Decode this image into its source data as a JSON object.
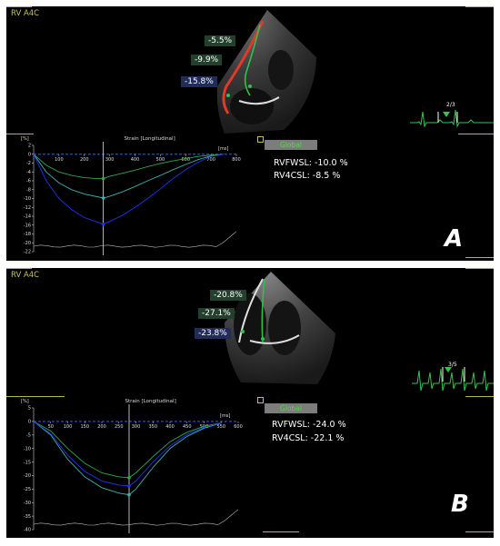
{
  "colors": {
    "accent_yellow": "#c9c84a",
    "global_green": "#48e03c",
    "strain_blue": "#2233ee",
    "strain_green": "#2fa84a",
    "strain_cyan": "#3fb0b0"
  },
  "panels": [
    {
      "view_label": "RV A4C",
      "segment_labels": [
        "-5.5%",
        "-9.9%",
        "-15.8%"
      ],
      "global_button": "Global",
      "metrics": [
        "RVFWSL: -10.0 %",
        "RV4CSL: -8.5 %"
      ],
      "panel_letter": "A",
      "ecg_fraction": "2/3"
    },
    {
      "view_label": "RV A4C",
      "segment_labels": [
        "-20.8%",
        "-27.1%",
        "-23.8%"
      ],
      "global_button": "Global",
      "metrics": [
        "RVFWSL: -24.0 %",
        "RV4CSL: -22.1 %"
      ],
      "panel_letter": "B",
      "ecg_fraction": "3/5"
    }
  ],
  "chart_data": [
    {
      "type": "line",
      "title": "Strain [Longitudinal]",
      "ylabel": "[%]",
      "xlabel": "[ms]",
      "x_ticks": [
        100,
        200,
        300,
        400,
        500,
        600,
        700,
        800
      ],
      "y_ticks": [
        2,
        0,
        -2,
        -4,
        -6,
        -8,
        -10,
        -12,
        -14,
        -16,
        -18,
        -20,
        -22
      ],
      "xlim": [
        0,
        800
      ],
      "ylim": [
        -22,
        2
      ],
      "marker_x": 275,
      "x": [
        0,
        50,
        100,
        150,
        200,
        250,
        275,
        300,
        350,
        400,
        450,
        500,
        550,
        600,
        650,
        700,
        750
      ],
      "series": [
        {
          "color": "green",
          "values": [
            0,
            -2.5,
            -4.0,
            -4.8,
            -5.3,
            -5.5,
            -5.5,
            -5.0,
            -4.3,
            -3.6,
            -2.8,
            -2.1,
            -1.5,
            -1.0,
            -0.5,
            -0.2,
            0
          ]
        },
        {
          "color": "cyan",
          "values": [
            0,
            -4.0,
            -6.5,
            -8.0,
            -9.0,
            -9.6,
            -9.9,
            -9.5,
            -8.5,
            -7.3,
            -6.0,
            -4.8,
            -3.5,
            -2.3,
            -1.2,
            -0.4,
            0
          ]
        },
        {
          "color": "blue",
          "values": [
            0,
            -6.0,
            -10.0,
            -12.5,
            -14.3,
            -15.3,
            -15.8,
            -15.2,
            -13.8,
            -12.0,
            -10.0,
            -7.8,
            -5.5,
            -3.5,
            -1.8,
            -0.5,
            0
          ]
        }
      ]
    },
    {
      "type": "line",
      "title": "Strain [Longitudinal]",
      "ylabel": "[%]",
      "xlabel": "[ms]",
      "x_ticks": [
        50,
        100,
        150,
        200,
        250,
        300,
        350,
        400,
        450,
        500,
        550,
        600
      ],
      "y_ticks": [
        5,
        0,
        -5,
        -10,
        -15,
        -20,
        -25,
        -30,
        -35,
        -40
      ],
      "xlim": [
        0,
        600
      ],
      "ylim": [
        -40,
        5
      ],
      "marker_x": 280,
      "x": [
        0,
        50,
        100,
        150,
        200,
        250,
        280,
        300,
        350,
        400,
        450,
        500,
        550
      ],
      "series": [
        {
          "color": "green",
          "values": [
            0,
            -3.5,
            -10.0,
            -15.5,
            -19.0,
            -20.5,
            -20.8,
            -19.0,
            -13.0,
            -7.5,
            -4.0,
            -1.8,
            -0.5
          ]
        },
        {
          "color": "cyan",
          "values": [
            0,
            -5.0,
            -14.0,
            -20.5,
            -24.5,
            -26.5,
            -27.1,
            -25.0,
            -17.0,
            -10.0,
            -5.5,
            -2.5,
            -0.6
          ]
        },
        {
          "color": "blue",
          "values": [
            0,
            -4.5,
            -12.5,
            -18.5,
            -22.0,
            -23.5,
            -23.8,
            -22.0,
            -15.0,
            -9.0,
            -4.8,
            -2.2,
            -0.5
          ]
        }
      ]
    }
  ]
}
